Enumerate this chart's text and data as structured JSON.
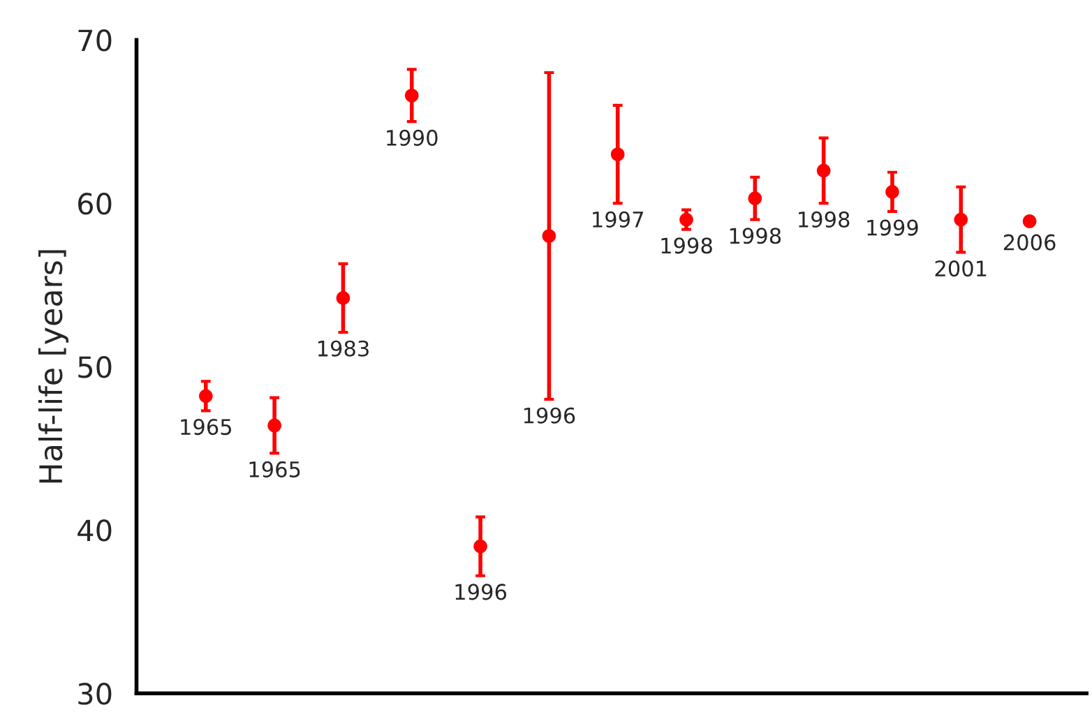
{
  "chart_data": {
    "type": "scatter",
    "ylabel": "Half-life [years]",
    "categories": [
      null,
      null,
      null,
      null,
      null,
      null,
      null,
      null,
      null,
      null,
      null,
      null,
      null
    ],
    "series": [
      {
        "color": "#ff0000",
        "values": [
          48.2,
          46.4,
          54.2,
          66.6,
          39.0,
          58.0,
          63.0,
          59.0,
          60.3,
          62.0,
          60.7,
          59.0,
          58.9
        ],
        "errors": [
          0.9,
          1.7,
          2.1,
          1.6,
          1.8,
          10,
          3,
          0.6,
          1.3,
          2,
          1.2,
          2,
          null
        ]
      }
    ],
    "annotations": [
      "1965",
      "1965",
      "1983",
      "1990",
      "1996",
      "1996",
      "1997",
      "1998",
      "1998",
      "1998",
      "1999",
      "2001",
      "2006"
    ],
    "ylim": [
      30,
      70
    ],
    "yticks": [
      30,
      40,
      50,
      60,
      70
    ],
    "grid": false,
    "legend": false,
    "marker": "circle"
  }
}
